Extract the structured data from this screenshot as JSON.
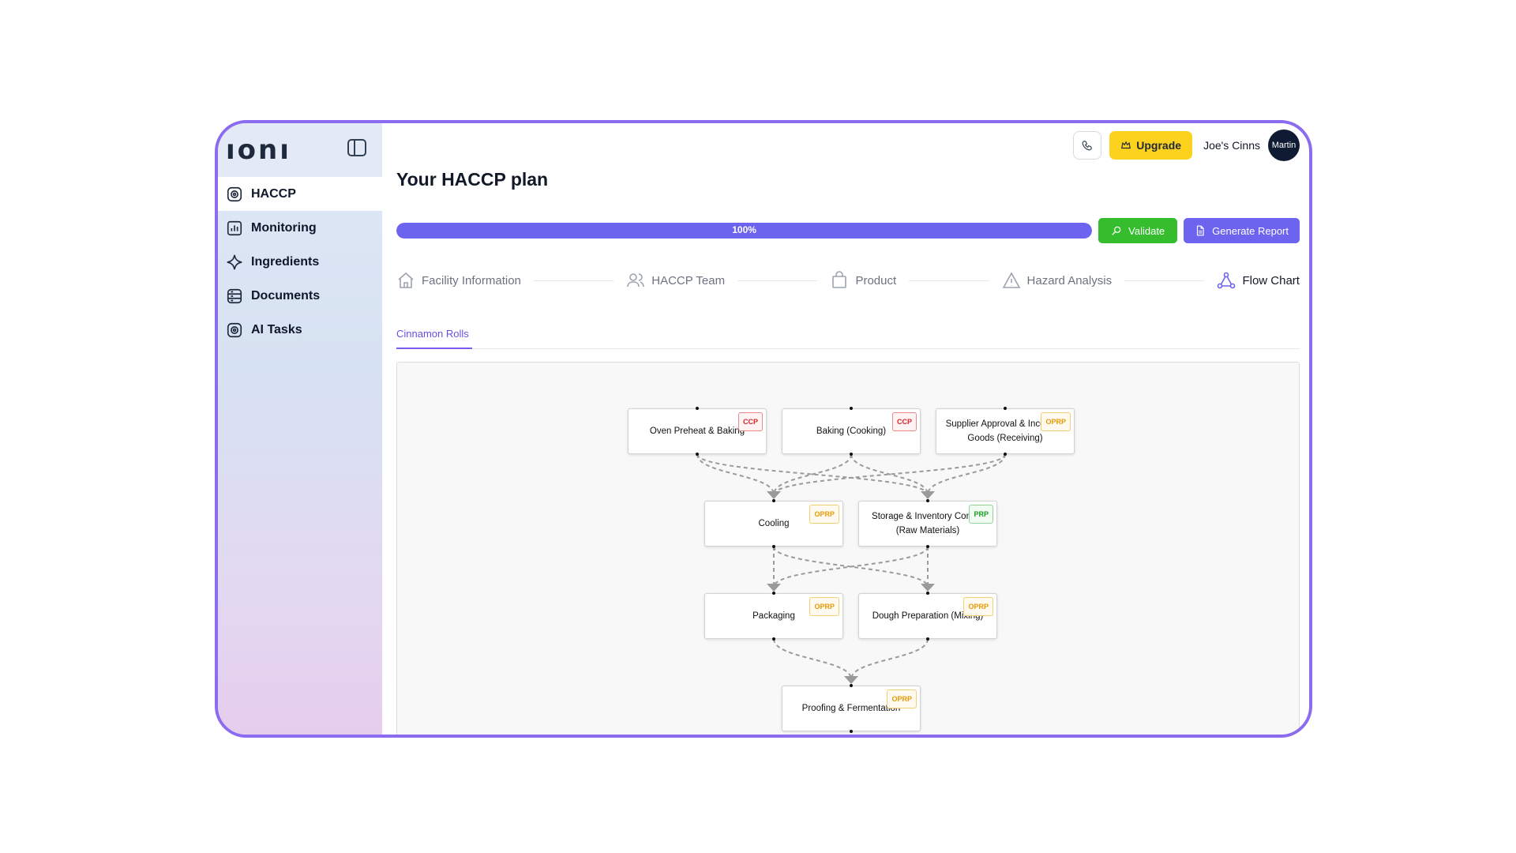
{
  "app": {
    "logo": "ıonı"
  },
  "sidebar": {
    "items": [
      {
        "label": "HACCP",
        "icon": "haccp-icon",
        "active": true
      },
      {
        "label": "Monitoring",
        "icon": "monitoring-chart-icon",
        "active": false
      },
      {
        "label": "Ingredients",
        "icon": "sparkle-icon",
        "active": false
      },
      {
        "label": "Documents",
        "icon": "documents-icon",
        "active": false
      },
      {
        "label": "AI Tasks",
        "icon": "ai-tasks-icon",
        "active": false
      }
    ]
  },
  "header": {
    "upgrade_label": "Upgrade",
    "user_name": "Joe's Cinns",
    "avatar_text": "Martin"
  },
  "page": {
    "title": "Your HACCP plan"
  },
  "progress": {
    "value_percent": 100,
    "label": "100%"
  },
  "actions": {
    "validate_label": "Validate",
    "report_label": "Generate Report"
  },
  "steps": [
    {
      "label": "Facility Information",
      "icon": "home-icon",
      "active": false
    },
    {
      "label": "HACCP Team",
      "icon": "team-icon",
      "active": false
    },
    {
      "label": "Product",
      "icon": "bag-icon",
      "active": false
    },
    {
      "label": "Hazard Analysis",
      "icon": "warning-icon",
      "active": false
    },
    {
      "label": "Flow Chart",
      "icon": "flow-chart-icon",
      "active": true
    }
  ],
  "tabs": [
    {
      "label": "Cinnamon Rolls",
      "active": true
    }
  ],
  "flow": {
    "nodes": [
      {
        "id": "oven",
        "label": "Oven Preheat & Baking",
        "badge": "CCP"
      },
      {
        "id": "baking",
        "label": "Baking (Cooking)",
        "badge": "CCP"
      },
      {
        "id": "supplier",
        "label": "Supplier Approval & Incoming Goods (Receiving)",
        "badge": "OPRP"
      },
      {
        "id": "cooling",
        "label": "Cooling",
        "badge": "OPRP"
      },
      {
        "id": "storage",
        "label": "Storage & Inventory Control (Raw Materials)",
        "badge": "PRP"
      },
      {
        "id": "packaging",
        "label": "Packaging",
        "badge": "OPRP"
      },
      {
        "id": "dough",
        "label": "Dough Preparation (Mixing)",
        "badge": "OPRP"
      },
      {
        "id": "proofing",
        "label": "Proofing & Fermentation",
        "badge": "OPRP"
      }
    ],
    "badge_colors": {
      "CCP": "#d3262a",
      "OPRP": "#e59a06",
      "PRP": "#1c9a23"
    }
  }
}
